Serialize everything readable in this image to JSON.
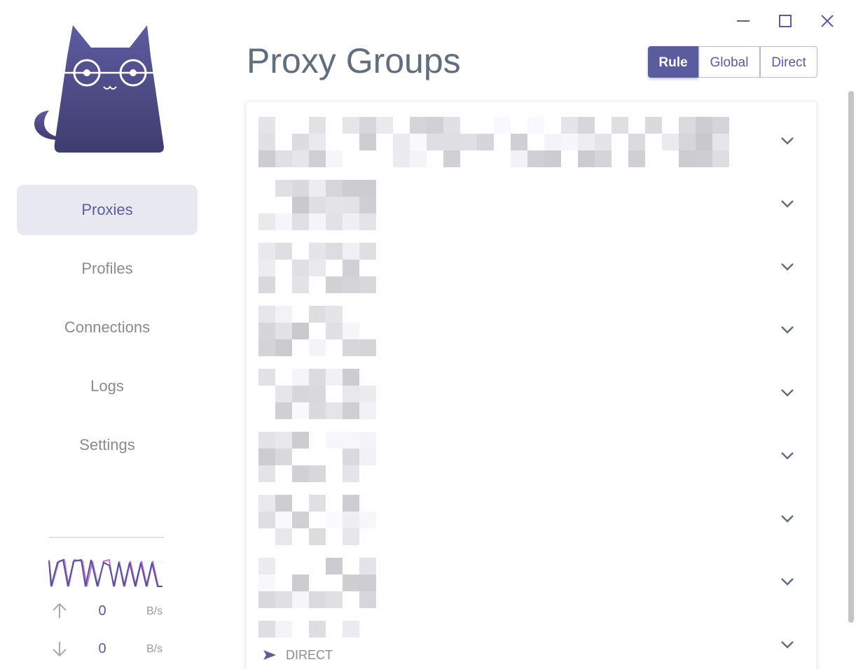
{
  "sidebar": {
    "nav": [
      "Proxies",
      "Profiles",
      "Connections",
      "Logs",
      "Settings"
    ],
    "traffic": {
      "upload": {
        "value": 0,
        "unit": "B/s"
      },
      "download": {
        "value": 0,
        "unit": "B/s"
      }
    }
  },
  "header": {
    "title": "Proxy Groups",
    "modes": [
      "Rule",
      "Global",
      "Direct"
    ]
  },
  "proxy_groups": {
    "last_selected": "DIRECT"
  }
}
